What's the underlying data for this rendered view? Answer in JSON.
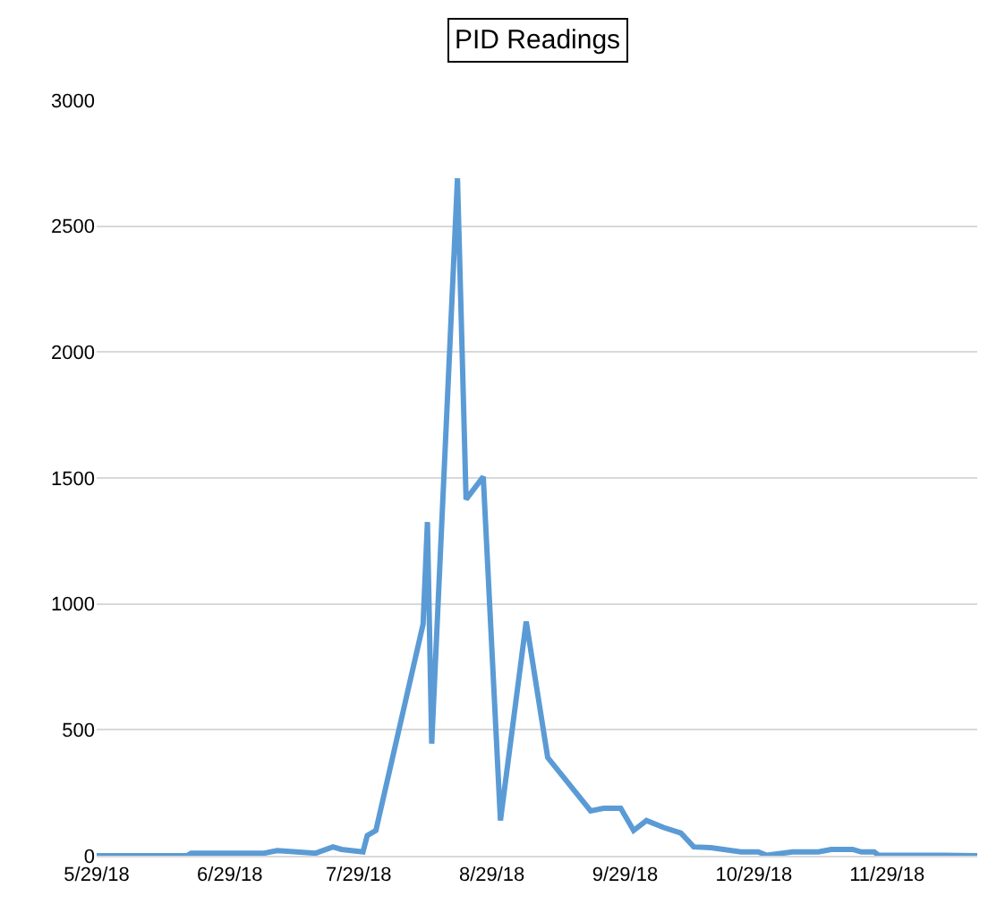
{
  "chart_data": {
    "type": "line",
    "title": "PID Readings",
    "x": [
      "2018-05-29",
      "2018-06-19",
      "2018-06-20",
      "2018-07-07",
      "2018-07-10",
      "2018-07-19",
      "2018-07-23",
      "2018-07-25",
      "2018-07-30",
      "2018-07-31",
      "2018-08-02",
      "2018-08-13",
      "2018-08-14",
      "2018-08-15",
      "2018-08-21",
      "2018-08-23",
      "2018-08-27",
      "2018-08-31",
      "2018-09-06",
      "2018-09-11",
      "2018-09-21",
      "2018-09-24",
      "2018-09-28",
      "2018-10-01",
      "2018-10-04",
      "2018-10-08",
      "2018-10-12",
      "2018-10-15",
      "2018-10-19",
      "2018-10-26",
      "2018-10-30",
      "2018-11-01",
      "2018-11-07",
      "2018-11-13",
      "2018-11-16",
      "2018-11-21",
      "2018-11-23",
      "2018-11-26",
      "2018-11-27",
      "2018-12-12",
      "2018-12-20"
    ],
    "series": [
      {
        "color": "#5b9bd5",
        "values": [
          0,
          0,
          10,
          10,
          20,
          10,
          35,
          25,
          15,
          80,
          100,
          920,
          1325,
          445,
          2690,
          1415,
          1505,
          140,
          930,
          390,
          178,
          188,
          188,
          100,
          140,
          112,
          90,
          35,
          32,
          15,
          15,
          2,
          15,
          15,
          25,
          25,
          15,
          15,
          2,
          2,
          0
        ]
      }
    ],
    "xlim": [
      "2018-05-29",
      "2018-12-20"
    ],
    "xticks": [
      {
        "value": "2018-05-29",
        "label": "5/29/18"
      },
      {
        "value": "2018-06-29",
        "label": "6/29/18"
      },
      {
        "value": "2018-07-29",
        "label": "7/29/18"
      },
      {
        "value": "2018-08-29",
        "label": "8/29/18"
      },
      {
        "value": "2018-09-29",
        "label": "9/29/18"
      },
      {
        "value": "2018-10-29",
        "label": "10/29/18"
      },
      {
        "value": "2018-11-29",
        "label": "11/29/18"
      }
    ],
    "ylim": [
      0,
      3000
    ],
    "yticks": [
      0,
      500,
      1000,
      1500,
      2000,
      2500,
      3000
    ],
    "grid": "y",
    "legend": false,
    "marker": "none",
    "line_style": "solid"
  }
}
